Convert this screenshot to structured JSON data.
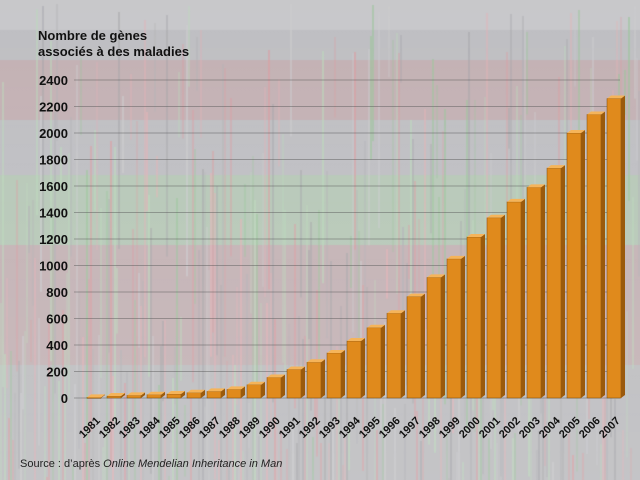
{
  "chart_data": {
    "type": "bar",
    "title": "",
    "ylabel_lines": [
      "Nombre de gènes",
      "associés à des maladies"
    ],
    "xlabel": "",
    "categories": [
      "1981",
      "1982",
      "1983",
      "1984",
      "1985",
      "1986",
      "1987",
      "1988",
      "1989",
      "1990",
      "1991",
      "1992",
      "1993",
      "1994",
      "1995",
      "1996",
      "1997",
      "1998",
      "1999",
      "2000",
      "2001",
      "2002",
      "2003",
      "2004",
      "2005",
      "2006",
      "2007"
    ],
    "values": [
      5,
      15,
      20,
      25,
      30,
      40,
      50,
      65,
      100,
      155,
      215,
      270,
      340,
      430,
      530,
      640,
      765,
      910,
      1050,
      1215,
      1360,
      1480,
      1590,
      1735,
      2000,
      2140,
      2260
    ],
    "yticks": [
      0,
      200,
      400,
      600,
      800,
      1000,
      1200,
      1400,
      1600,
      1800,
      2000,
      2200,
      2400
    ],
    "ylim": [
      0,
      2400
    ],
    "grid": true,
    "legend": "none",
    "bar_color": "#e08a1c",
    "bar_top_color": "#f5b45a",
    "bar_side_color": "#9a5a0c"
  },
  "source": {
    "prefix": "Source : d’après ",
    "title": "Online Mendelian Inheritance in Man"
  }
}
